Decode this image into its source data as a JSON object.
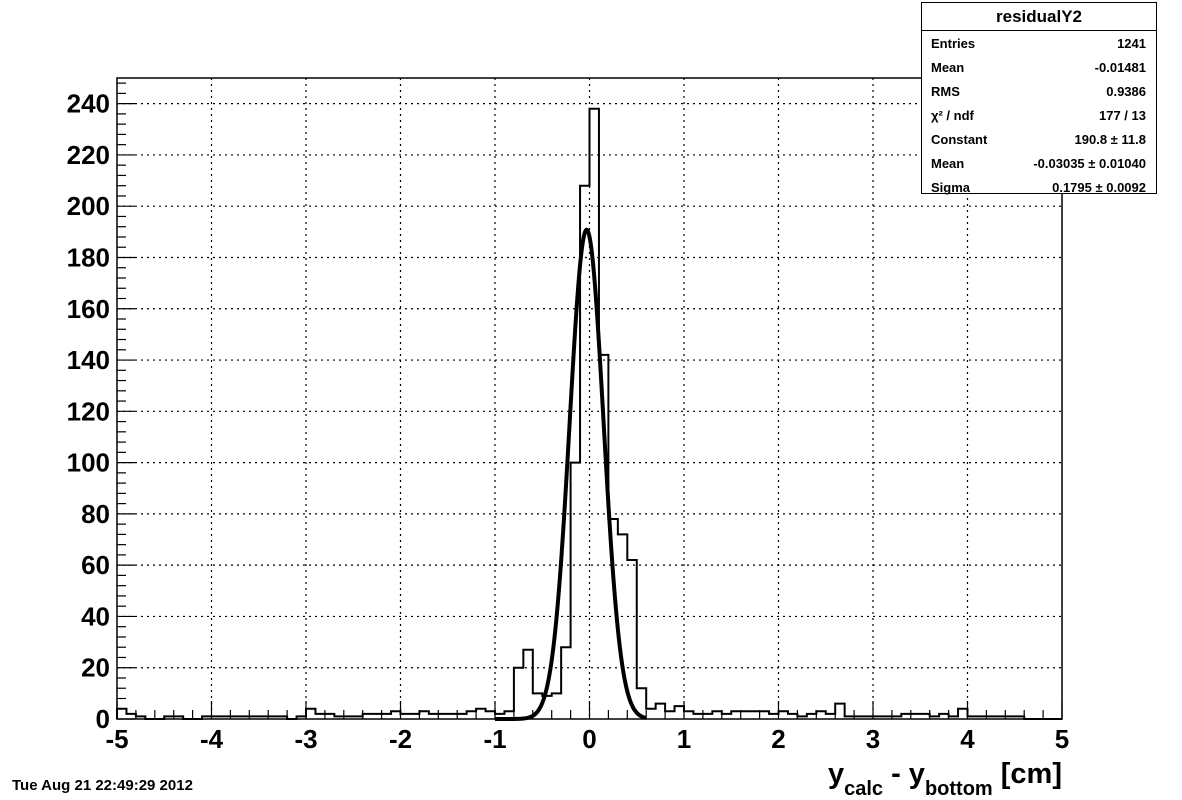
{
  "chart_data": {
    "type": "histogram",
    "title": "",
    "xlabel": "y_calc - y_bottom [cm]",
    "xlabel_parts": {
      "main": "y",
      "sub1": "calc",
      "mid": " - y",
      "sub2": "bottom",
      "unit": " [cm]"
    },
    "ylabel": "",
    "xlim": [
      -5,
      5
    ],
    "ylim": [
      0,
      250
    ],
    "grid": true,
    "x_ticks": [
      "-5",
      "-4",
      "-3",
      "-2",
      "-1",
      "0",
      "1",
      "2",
      "3",
      "4",
      "5"
    ],
    "y_ticks": [
      "0",
      "20",
      "40",
      "60",
      "80",
      "100",
      "120",
      "140",
      "160",
      "180",
      "200",
      "220",
      "240"
    ],
    "bin_width": 0.1,
    "bins": [
      {
        "x": -4.5,
        "y": 1
      },
      {
        "x": -4.4,
        "y": 1
      },
      {
        "x": -4.1,
        "y": 1
      },
      {
        "x": -4.0,
        "y": 1
      },
      {
        "x": -3.9,
        "y": 1
      },
      {
        "x": -3.8,
        "y": 1
      },
      {
        "x": -3.7,
        "y": 1
      },
      {
        "x": -3.6,
        "y": 1
      },
      {
        "x": -3.5,
        "y": 1
      },
      {
        "x": -3.4,
        "y": 1
      },
      {
        "x": -3.3,
        "y": 1
      },
      {
        "x": -3.1,
        "y": 1
      },
      {
        "x": -3.0,
        "y": 4
      },
      {
        "x": -2.9,
        "y": 2
      },
      {
        "x": -2.8,
        "y": 2
      },
      {
        "x": -2.7,
        "y": 1
      },
      {
        "x": -2.6,
        "y": 1
      },
      {
        "x": -2.5,
        "y": 1
      },
      {
        "x": -2.4,
        "y": 2
      },
      {
        "x": -2.3,
        "y": 2
      },
      {
        "x": -2.2,
        "y": 2
      },
      {
        "x": -2.1,
        "y": 3
      },
      {
        "x": -2.0,
        "y": 2
      },
      {
        "x": -1.9,
        "y": 2
      },
      {
        "x": -1.8,
        "y": 3
      },
      {
        "x": -1.7,
        "y": 2
      },
      {
        "x": -1.6,
        "y": 2
      },
      {
        "x": -1.5,
        "y": 2
      },
      {
        "x": -1.4,
        "y": 2
      },
      {
        "x": -1.3,
        "y": 3
      },
      {
        "x": -1.2,
        "y": 4
      },
      {
        "x": -1.1,
        "y": 3
      },
      {
        "x": -1.0,
        "y": 2
      },
      {
        "x": -0.9,
        "y": 3
      },
      {
        "x": -0.8,
        "y": 20
      },
      {
        "x": -0.7,
        "y": 27
      },
      {
        "x": -0.6,
        "y": 10
      },
      {
        "x": -0.5,
        "y": 9
      },
      {
        "x": -0.4,
        "y": 10
      },
      {
        "x": -0.3,
        "y": 28
      },
      {
        "x": -0.2,
        "y": 100
      },
      {
        "x": -0.1,
        "y": 208
      },
      {
        "x": 0.0,
        "y": 238
      },
      {
        "x": 0.1,
        "y": 142
      },
      {
        "x": 0.2,
        "y": 78
      },
      {
        "x": 0.3,
        "y": 72
      },
      {
        "x": 0.4,
        "y": 62
      },
      {
        "x": 0.5,
        "y": 12
      },
      {
        "x": 0.6,
        "y": 4
      },
      {
        "x": 0.7,
        "y": 6
      },
      {
        "x": 0.8,
        "y": 3
      },
      {
        "x": 0.9,
        "y": 5
      },
      {
        "x": 1.0,
        "y": 3
      },
      {
        "x": 1.1,
        "y": 2
      },
      {
        "x": 1.2,
        "y": 2
      },
      {
        "x": 1.3,
        "y": 3
      },
      {
        "x": 1.4,
        "y": 2
      },
      {
        "x": 1.5,
        "y": 3
      },
      {
        "x": 1.6,
        "y": 3
      },
      {
        "x": 1.7,
        "y": 3
      },
      {
        "x": 1.8,
        "y": 3
      },
      {
        "x": 1.9,
        "y": 2
      },
      {
        "x": 2.0,
        "y": 3
      },
      {
        "x": 2.1,
        "y": 2
      },
      {
        "x": 2.2,
        "y": 1
      },
      {
        "x": 2.3,
        "y": 2
      },
      {
        "x": 2.4,
        "y": 3
      },
      {
        "x": 2.5,
        "y": 2
      },
      {
        "x": 2.6,
        "y": 6
      },
      {
        "x": 2.7,
        "y": 1
      },
      {
        "x": 2.8,
        "y": 1
      },
      {
        "x": 2.9,
        "y": 1
      },
      {
        "x": 3.0,
        "y": 1
      },
      {
        "x": 3.1,
        "y": 1
      },
      {
        "x": 3.2,
        "y": 1
      },
      {
        "x": 3.3,
        "y": 2
      },
      {
        "x": 3.4,
        "y": 2
      },
      {
        "x": 3.5,
        "y": 2
      },
      {
        "x": 3.6,
        "y": 1
      },
      {
        "x": 3.7,
        "y": 2
      },
      {
        "x": 3.8,
        "y": 1
      },
      {
        "x": 3.9,
        "y": 4
      },
      {
        "x": 4.0,
        "y": 1
      },
      {
        "x": 4.1,
        "y": 1
      },
      {
        "x": 4.2,
        "y": 1
      },
      {
        "x": 4.3,
        "y": 1
      },
      {
        "x": 4.4,
        "y": 1
      },
      {
        "x": 4.5,
        "y": 1
      }
    ],
    "edge_bins": [
      {
        "x": -5.0,
        "y": 4
      },
      {
        "x": -4.9,
        "y": 2
      },
      {
        "x": -4.8,
        "y": 1
      }
    ],
    "fit": {
      "function": "gaus",
      "constant": 190.8,
      "mean": -0.03035,
      "sigma": 0.1795,
      "x_range": [
        -1.0,
        0.6
      ]
    }
  },
  "stats": {
    "title": "residualY2",
    "rows": [
      {
        "label": "Entries",
        "value": "1241"
      },
      {
        "label": "Mean",
        "value": "-0.01481"
      },
      {
        "label": "RMS",
        "value": "0.9386"
      },
      {
        "label": "χ² / ndf",
        "value": "177 / 13"
      },
      {
        "label": "Constant",
        "value": "190.8 ± 11.8"
      },
      {
        "label": "Mean",
        "value": "-0.03035 ± 0.01040"
      },
      {
        "label": "Sigma",
        "value": "0.1795 ± 0.0092"
      }
    ]
  },
  "timestamp": "Tue Aug 21 22:49:29 2012"
}
